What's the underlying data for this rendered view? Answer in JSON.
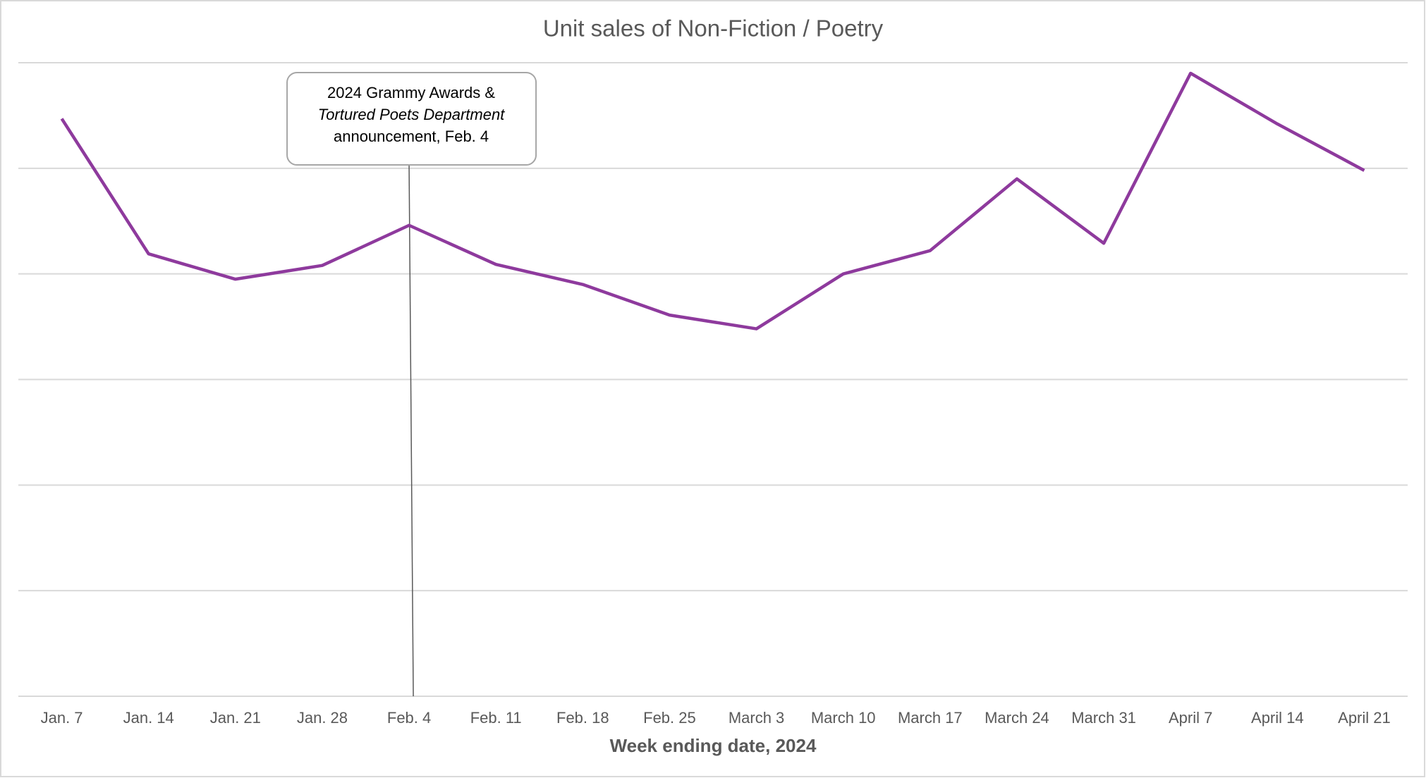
{
  "chart_data": {
    "type": "line",
    "title": "Unit sales of Non-Fiction / Poetry",
    "x_label": "Week ending date, 2024",
    "categories": [
      "Jan. 7",
      "Jan. 14",
      "Jan. 21",
      "Jan. 28",
      "Feb. 4",
      "Feb. 11",
      "Feb. 18",
      "Feb. 25",
      "March 3",
      "March 10",
      "March 17",
      "March 24",
      "March 31",
      "April 7",
      "April 14",
      "April 21"
    ],
    "values": [
      5.47,
      4.19,
      3.95,
      4.08,
      4.46,
      4.09,
      3.9,
      3.61,
      3.48,
      4.0,
      4.22,
      4.9,
      4.29,
      5.9,
      5.42,
      4.98
    ],
    "color": "#8e3a9d",
    "ylim": [
      0,
      6
    ],
    "yticks": [
      0,
      1,
      2,
      3,
      4,
      5,
      6
    ],
    "ytick_labels": false,
    "grid": true,
    "annotation": {
      "lines": [
        "2024 Grammy Awards &",
        "Tortured Poets Department",
        "announcement, Feb. 4"
      ]
    }
  }
}
